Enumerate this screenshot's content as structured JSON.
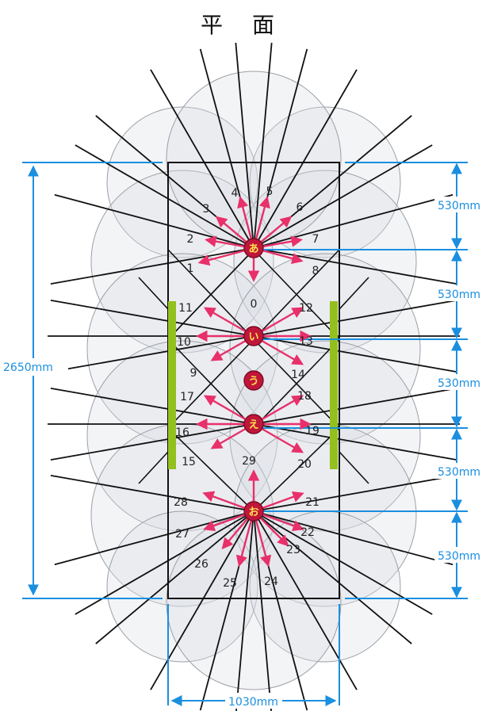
{
  "title": "平 面",
  "dimensions": {
    "total_height": "2650mm",
    "width": "1030mm",
    "segments": [
      "530mm",
      "530mm",
      "530mm",
      "530mm",
      "530mm"
    ]
  },
  "nodes": [
    {
      "id": "a",
      "label": "あ"
    },
    {
      "id": "i",
      "label": "い"
    },
    {
      "id": "u",
      "label": "う"
    },
    {
      "id": "e",
      "label": "え"
    },
    {
      "id": "o",
      "label": "お"
    }
  ],
  "directions": [
    "0",
    "1",
    "2",
    "3",
    "4",
    "5",
    "6",
    "7",
    "8",
    "9",
    "10",
    "11",
    "12",
    "13",
    "14",
    "15",
    "16",
    "17",
    "18",
    "19",
    "20",
    "21",
    "22",
    "23",
    "24",
    "25",
    "26",
    "27",
    "28",
    "29"
  ],
  "colors": {
    "arrow": "#e8306a",
    "node_fill": "#c0163a",
    "node_label": "#ffe24a",
    "dimension": "#1a8fe0",
    "panel": "#93c01f",
    "frame": "#111111",
    "circle_fill": "#d9dde2"
  }
}
